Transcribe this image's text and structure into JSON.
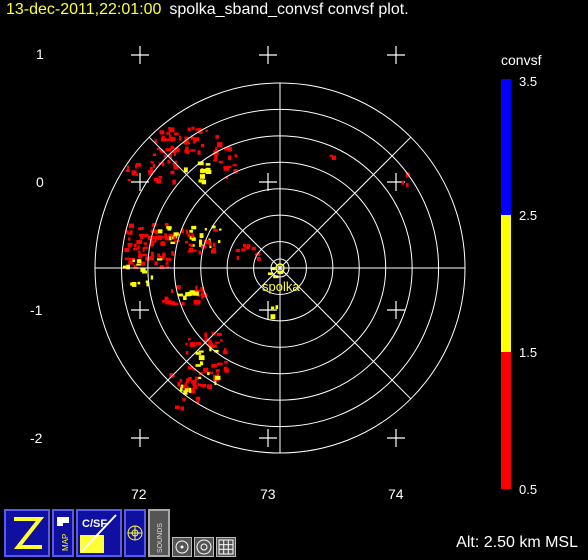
{
  "header": {
    "timestamp": "13-dec-2011,22:01:00",
    "description": "spolka_sband_convsf convsf  plot."
  },
  "plot": {
    "radar_name": "spolka",
    "y_tick_labels": [
      "1",
      "0",
      "-1",
      "-2"
    ],
    "x_tick_labels": [
      "72",
      "73",
      "74"
    ],
    "range_rings": 7,
    "spokes_deg": [
      0,
      45,
      90,
      135
    ]
  },
  "colorbar": {
    "title": "convsf",
    "levels": [
      {
        "label": "3.5"
      },
      {
        "label": "2.5"
      },
      {
        "label": "1.5"
      },
      {
        "label": "0.5"
      }
    ],
    "bands": [
      {
        "from": 2.5,
        "to": 3.5,
        "color": "#0000ff"
      },
      {
        "from": 1.5,
        "to": 2.5,
        "color": "#ffff00"
      },
      {
        "from": 0.5,
        "to": 1.5,
        "color": "#ff0000"
      }
    ]
  },
  "status": {
    "altitude": "Alt: 2.50 km MSL"
  },
  "toolbar": {
    "buttons": [
      {
        "icon": "zebra-logo-icon",
        "label": ""
      },
      {
        "icon": "map-icon",
        "label": "MAP"
      },
      {
        "icon": "convsf-field-icon",
        "label": "C/SF"
      },
      {
        "icon": "radar-wheel-icon",
        "label": ""
      },
      {
        "icon": "sounds-icon",
        "label": "SOUNDS"
      },
      {
        "icon": "zoom-out-icon",
        "label": ""
      },
      {
        "icon": "target-icon",
        "label": ""
      },
      {
        "icon": "grid-icon",
        "label": ""
      }
    ]
  }
}
